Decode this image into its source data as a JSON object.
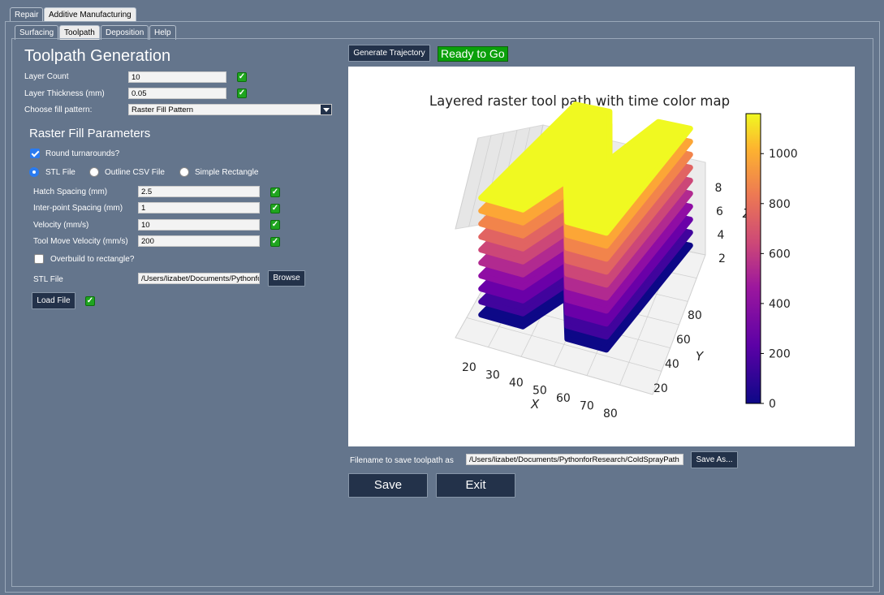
{
  "top_tabs": [
    "Repair",
    "Additive Manufacturing"
  ],
  "sub_tabs": [
    "Surfacing",
    "Toolpath",
    "Deposition",
    "Help"
  ],
  "left": {
    "title": "Toolpath Generation",
    "layer_count": {
      "label": "Layer Count",
      "value": "10"
    },
    "layer_thickness": {
      "label": "Layer Thickness (mm)",
      "value": "0.05"
    },
    "fill_pattern": {
      "label": "Choose fill pattern:",
      "value": "Raster Fill Pattern"
    },
    "raster_title": "Raster Fill Parameters",
    "round_turnarounds": {
      "label": "Round turnarounds?",
      "checked": true
    },
    "sources": {
      "stl": "STL File",
      "outline": "Outline CSV File",
      "rect": "Simple Rectangle",
      "selected": "stl"
    },
    "hatch_spacing": {
      "label": "Hatch Spacing (mm)",
      "value": "2.5"
    },
    "interpoint_spacing": {
      "label": "Inter-point Spacing (mm)",
      "value": "1"
    },
    "velocity": {
      "label": "Velocity (mm/s)",
      "value": "10"
    },
    "tool_move_velocity": {
      "label": "Tool Move Velocity (mm/s)",
      "value": "200"
    },
    "overbuild": {
      "label": "Overbuild to rectangle?",
      "checked": false
    },
    "stl_file": {
      "label": "STL File",
      "value": "/Users/lizabet/Documents/PythonforResearch"
    },
    "browse_label": "Browse",
    "load_file_label": "Load File",
    "check_glyph": "✓"
  },
  "right": {
    "generate_label": "Generate Trajectory",
    "status_text": "Ready to Go",
    "save_filename_label": "Filename to save toolpath as",
    "save_filename_value": "/Users/lizabet/Documents/PythonforResearch/ColdSprayPath",
    "save_as_label": "Save As...",
    "save_label": "Save",
    "exit_label": "Exit"
  },
  "colors": {
    "accent_green": "#0aa00a",
    "button_navy": "#23324a",
    "background": "#64758c"
  },
  "chart_data": {
    "type": "scatter",
    "title": "Layered raster tool path with time color map",
    "xlabel": "X",
    "ylabel": "Y",
    "zlabel": "Z",
    "x_ticks": [
      "20",
      "30",
      "40",
      "50",
      "60",
      "70",
      "80"
    ],
    "y_ticks": [
      "20",
      "40",
      "60",
      "80"
    ],
    "z_ticks": [
      "2",
      "4",
      "6",
      "8"
    ],
    "colorbar_ticks": [
      "0",
      "200",
      "400",
      "600",
      "800",
      "1000"
    ],
    "colorbar_range": [
      0,
      1160
    ],
    "colormap": "plasma",
    "layers": 10,
    "shape_outline": [
      [
        22,
        20
      ],
      [
        38,
        95
      ],
      [
        52,
        95
      ],
      [
        60,
        65
      ],
      [
        72,
        95
      ],
      [
        85,
        95
      ],
      [
        70,
        20
      ],
      [
        55,
        20
      ],
      [
        48,
        45
      ],
      [
        38,
        20
      ]
    ]
  }
}
